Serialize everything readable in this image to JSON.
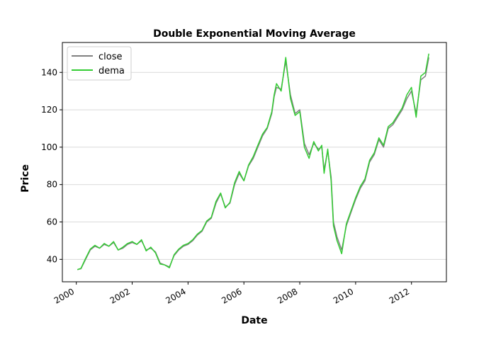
{
  "chart_data": {
    "type": "line",
    "title": "Double Exponential Moving Average",
    "xlabel": "Date",
    "ylabel": "Price",
    "xlim": [
      "1999-07-01",
      "2013-04-01"
    ],
    "ylim": [
      28,
      156
    ],
    "x_ticks": [
      "2000",
      "2002",
      "2004",
      "2006",
      "2008",
      "2010",
      "2012"
    ],
    "y_ticks": [
      40,
      60,
      80,
      100,
      120,
      140
    ],
    "grid": "horizontal",
    "legend_position": "upper-left",
    "series": [
      {
        "name": "close",
        "color": "#808080",
        "x": [
          "2000-01-15",
          "2000-03-01",
          "2000-05-01",
          "2000-07-01",
          "2000-09-01",
          "2000-11-01",
          "2001-01-01",
          "2001-03-01",
          "2001-05-01",
          "2001-07-01",
          "2001-09-01",
          "2001-11-01",
          "2002-01-01",
          "2002-03-01",
          "2002-05-01",
          "2002-07-01",
          "2002-09-01",
          "2002-11-01",
          "2003-01-01",
          "2003-03-01",
          "2003-05-01",
          "2003-07-01",
          "2003-09-01",
          "2003-11-01",
          "2004-01-01",
          "2004-03-01",
          "2004-05-01",
          "2004-07-01",
          "2004-09-01",
          "2004-11-01",
          "2005-01-01",
          "2005-03-01",
          "2005-05-01",
          "2005-07-01",
          "2005-09-01",
          "2005-11-01",
          "2006-01-01",
          "2006-03-01",
          "2006-05-01",
          "2006-07-01",
          "2006-09-01",
          "2006-11-01",
          "2007-01-01",
          "2007-02-01",
          "2007-03-01",
          "2007-05-01",
          "2007-07-01",
          "2007-09-01",
          "2007-11-01",
          "2008-01-01",
          "2008-03-01",
          "2008-05-01",
          "2008-07-01",
          "2008-09-01",
          "2008-10-15",
          "2008-11-15",
          "2009-01-01",
          "2009-02-15",
          "2009-03-15",
          "2009-05-01",
          "2009-07-01",
          "2009-09-01",
          "2009-11-01",
          "2010-01-01",
          "2010-03-01",
          "2010-05-01",
          "2010-07-01",
          "2010-09-01",
          "2010-11-01",
          "2011-01-01",
          "2011-03-01",
          "2011-05-01",
          "2011-07-01",
          "2011-09-01",
          "2011-11-01",
          "2012-01-01",
          "2012-03-01",
          "2012-05-01",
          "2012-07-01",
          "2012-08-15"
        ],
        "values": [
          34.5,
          35,
          40,
          45,
          47,
          46,
          48,
          47,
          49,
          45,
          46,
          48,
          49,
          48,
          50,
          45,
          46,
          44,
          38,
          37,
          36,
          42,
          45,
          47,
          48,
          50,
          53,
          55,
          60,
          62,
          70,
          75,
          68,
          70,
          80,
          86,
          82,
          90,
          94,
          100,
          106,
          110,
          118,
          127,
          132,
          131,
          146,
          128,
          118,
          120,
          102,
          96,
          102,
          99,
          100,
          88,
          98,
          84,
          60,
          52,
          45,
          58,
          65,
          72,
          78,
          82,
          92,
          96,
          104,
          100,
          110,
          112,
          116,
          120,
          126,
          130,
          118,
          136,
          138,
          148
        ],
        "line_width": 1.5
      },
      {
        "name": "dema",
        "color": "#33cc33",
        "x": [
          "2000-01-15",
          "2000-03-01",
          "2000-05-01",
          "2000-07-01",
          "2000-09-01",
          "2000-11-01",
          "2001-01-01",
          "2001-03-01",
          "2001-05-01",
          "2001-07-01",
          "2001-09-01",
          "2001-11-01",
          "2002-01-01",
          "2002-03-01",
          "2002-05-01",
          "2002-07-01",
          "2002-09-01",
          "2002-11-01",
          "2003-01-01",
          "2003-03-01",
          "2003-05-01",
          "2003-07-01",
          "2003-09-01",
          "2003-11-01",
          "2004-01-01",
          "2004-03-01",
          "2004-05-01",
          "2004-07-01",
          "2004-09-01",
          "2004-11-01",
          "2005-01-01",
          "2005-03-01",
          "2005-05-01",
          "2005-07-01",
          "2005-09-01",
          "2005-11-01",
          "2006-01-01",
          "2006-03-01",
          "2006-05-01",
          "2006-07-01",
          "2006-09-01",
          "2006-11-01",
          "2007-01-01",
          "2007-02-01",
          "2007-03-01",
          "2007-05-01",
          "2007-07-01",
          "2007-09-01",
          "2007-11-01",
          "2008-01-01",
          "2008-03-01",
          "2008-05-01",
          "2008-07-01",
          "2008-09-01",
          "2008-10-15",
          "2008-11-15",
          "2009-01-01",
          "2009-02-15",
          "2009-03-15",
          "2009-05-01",
          "2009-07-01",
          "2009-09-01",
          "2009-11-01",
          "2010-01-01",
          "2010-03-01",
          "2010-05-01",
          "2010-07-01",
          "2010-09-01",
          "2010-11-01",
          "2011-01-01",
          "2011-03-01",
          "2011-05-01",
          "2011-07-01",
          "2011-09-01",
          "2011-11-01",
          "2012-01-01",
          "2012-03-01",
          "2012-05-01",
          "2012-07-01",
          "2012-08-15"
        ],
        "values": [
          34.5,
          35.2,
          40.5,
          45.5,
          47.5,
          46,
          48.5,
          47,
          49.5,
          45,
          46.5,
          48.5,
          49.5,
          48,
          50.5,
          44.5,
          46.5,
          43.5,
          37.5,
          37,
          35.5,
          42.5,
          45.5,
          47.5,
          48.5,
          50.5,
          53.5,
          55.5,
          60.5,
          62.5,
          71,
          75.5,
          67.5,
          70.5,
          81,
          87,
          82,
          90.5,
          95,
          101,
          107,
          110.5,
          119,
          128,
          134,
          130,
          148,
          126,
          117,
          119,
          100,
          94,
          103,
          98,
          101,
          86,
          99,
          82,
          58,
          50,
          43,
          59,
          66,
          73,
          79,
          83,
          93,
          97,
          105,
          101,
          111,
          113,
          117,
          121,
          128,
          132,
          116,
          138,
          140,
          150
        ],
        "line_width": 1.5
      }
    ]
  }
}
